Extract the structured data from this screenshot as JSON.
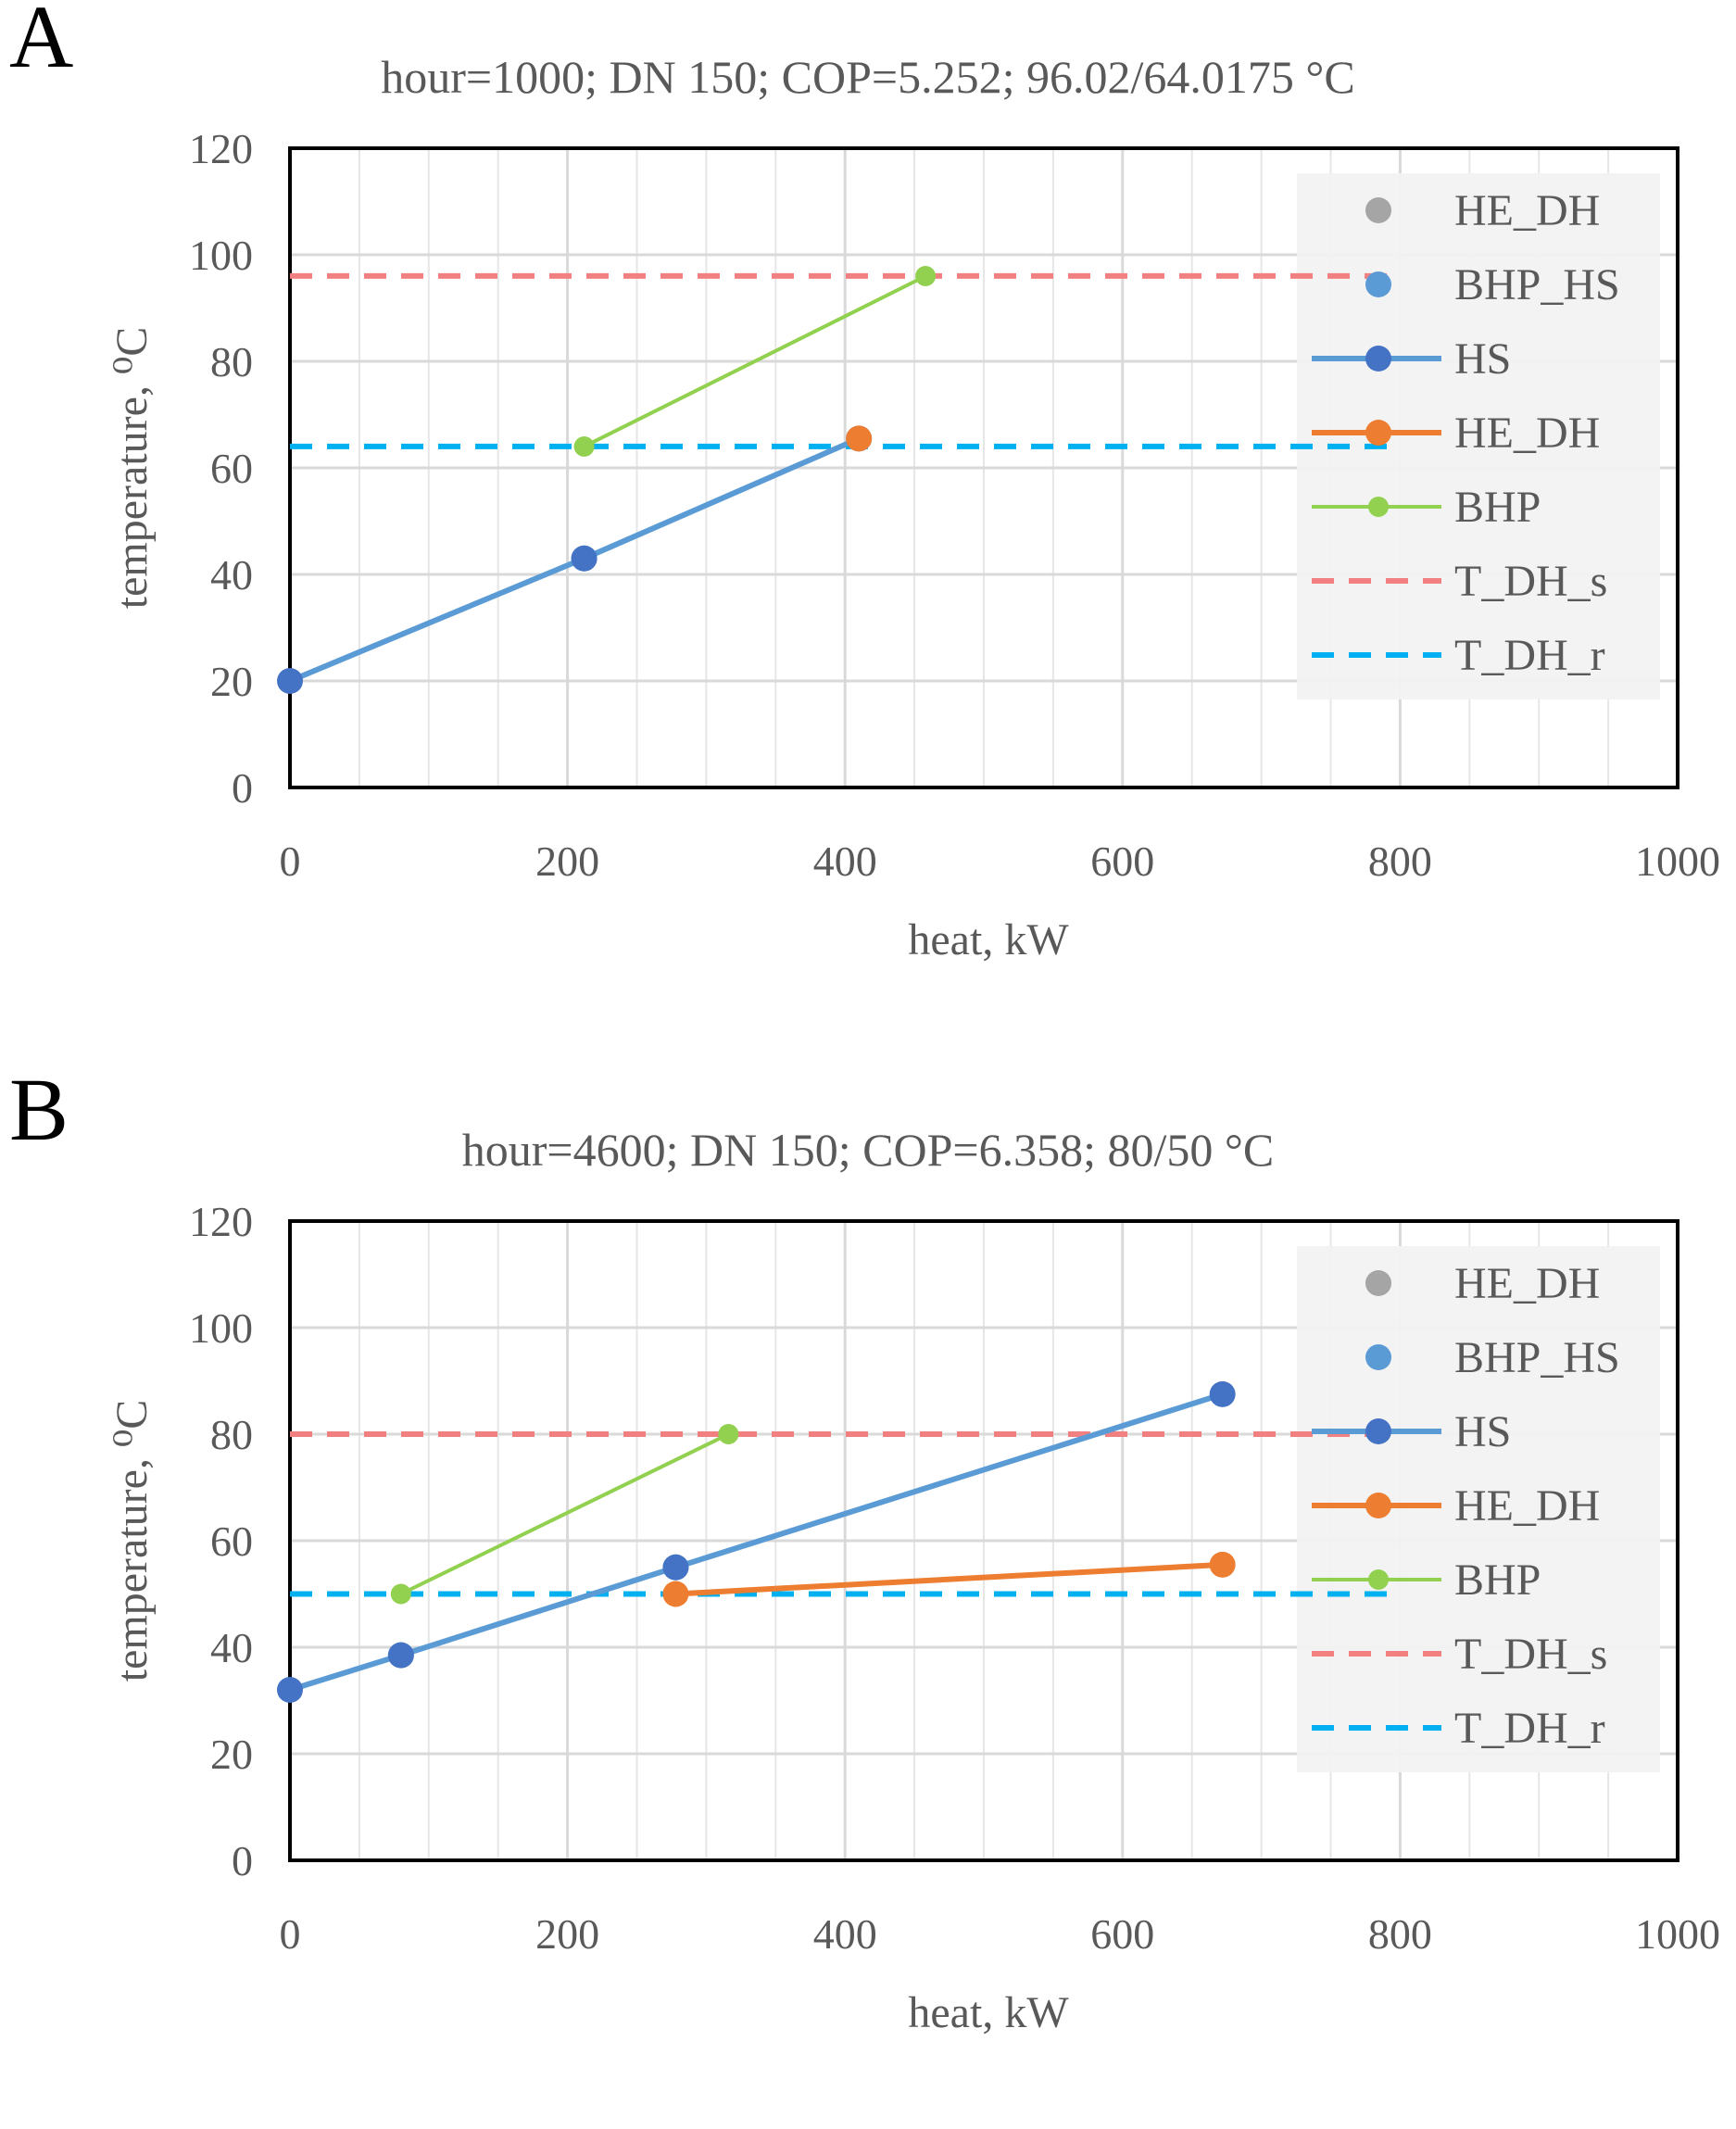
{
  "panels": [
    {
      "letter": "A",
      "chart_data": {
        "type": "line",
        "title": "hour=1000; DN 150; COP=5.252; 96.02/64.0175 °C",
        "xlabel": "heat, kW",
        "ylabel": "temperature, ⁰C",
        "xlim": [
          0,
          1000
        ],
        "ylim": [
          0,
          120
        ],
        "xticks": [
          "0",
          "200",
          "400",
          "600",
          "800",
          "1000"
        ],
        "yticks": [
          "0",
          "20",
          "40",
          "60",
          "80",
          "100",
          "120"
        ],
        "grid": true,
        "legend_position": "top-right",
        "legend": [
          "HE_DH",
          "BHP_HS",
          "HS",
          "HE_DH",
          "BHP",
          "T_DH_s",
          "T_DH_r"
        ],
        "series": [
          {
            "name": "HE_DH",
            "style": "marker",
            "color": "#a5a5a5",
            "points": []
          },
          {
            "name": "BHP_HS",
            "style": "marker",
            "color": "#5b9bd5",
            "points": [
              [
                212,
                43
              ]
            ]
          },
          {
            "name": "HS",
            "style": "line-marker",
            "color": "#5b9bd5",
            "marker_color": "#4472c4",
            "points": [
              [
                0,
                20
              ],
              [
                212,
                43
              ],
              [
                410,
                65.5
              ]
            ]
          },
          {
            "name": "HE_DH",
            "style": "line-marker",
            "color": "#ed7d31",
            "points": [
              [
                410,
                65.5
              ]
            ]
          },
          {
            "name": "BHP",
            "style": "line-marker",
            "color": "#92d050",
            "points": [
              [
                212,
                64
              ],
              [
                458,
                96
              ]
            ]
          },
          {
            "name": "T_DH_s",
            "style": "dashed",
            "color": "#f28080",
            "points": [
              [
                0,
                96.02
              ],
              [
                800,
                96.02
              ]
            ]
          },
          {
            "name": "T_DH_r",
            "style": "dashed",
            "color": "#00b0f0",
            "points": [
              [
                0,
                64.0175
              ],
              [
                800,
                64.0175
              ]
            ]
          }
        ]
      }
    },
    {
      "letter": "B",
      "chart_data": {
        "type": "line",
        "title": "hour=4600; DN 150; COP=6.358; 80/50 °C",
        "xlabel": "heat, kW",
        "ylabel": "temperature, ⁰C",
        "xlim": [
          0,
          1000
        ],
        "ylim": [
          0,
          120
        ],
        "xticks": [
          "0",
          "200",
          "400",
          "600",
          "800",
          "1000"
        ],
        "yticks": [
          "0",
          "20",
          "40",
          "60",
          "80",
          "100",
          "120"
        ],
        "grid": true,
        "legend_position": "top-right",
        "legend": [
          "HE_DH",
          "BHP_HS",
          "HS",
          "HE_DH",
          "BHP",
          "T_DH_s",
          "T_DH_r"
        ],
        "series": [
          {
            "name": "HE_DH",
            "style": "marker",
            "color": "#a5a5a5",
            "points": []
          },
          {
            "name": "BHP_HS",
            "style": "marker",
            "color": "#5b9bd5",
            "points": [
              [
                80,
                38.5
              ],
              [
                278,
                55
              ]
            ]
          },
          {
            "name": "HS",
            "style": "line-marker",
            "color": "#5b9bd5",
            "marker_color": "#4472c4",
            "points": [
              [
                0,
                32
              ],
              [
                80,
                38.5
              ],
              [
                278,
                55
              ],
              [
                672,
                87.5
              ]
            ]
          },
          {
            "name": "HE_DH",
            "style": "line-marker",
            "color": "#ed7d31",
            "points": [
              [
                278,
                50
              ],
              [
                672,
                55.5
              ]
            ]
          },
          {
            "name": "BHP",
            "style": "line-marker",
            "color": "#92d050",
            "points": [
              [
                80,
                50
              ],
              [
                316,
                80
              ]
            ]
          },
          {
            "name": "T_DH_s",
            "style": "dashed",
            "color": "#f28080",
            "points": [
              [
                0,
                80
              ],
              [
                800,
                80
              ]
            ]
          },
          {
            "name": "T_DH_r",
            "style": "dashed",
            "color": "#00b0f0",
            "points": [
              [
                0,
                50
              ],
              [
                800,
                50
              ]
            ]
          }
        ]
      }
    }
  ]
}
